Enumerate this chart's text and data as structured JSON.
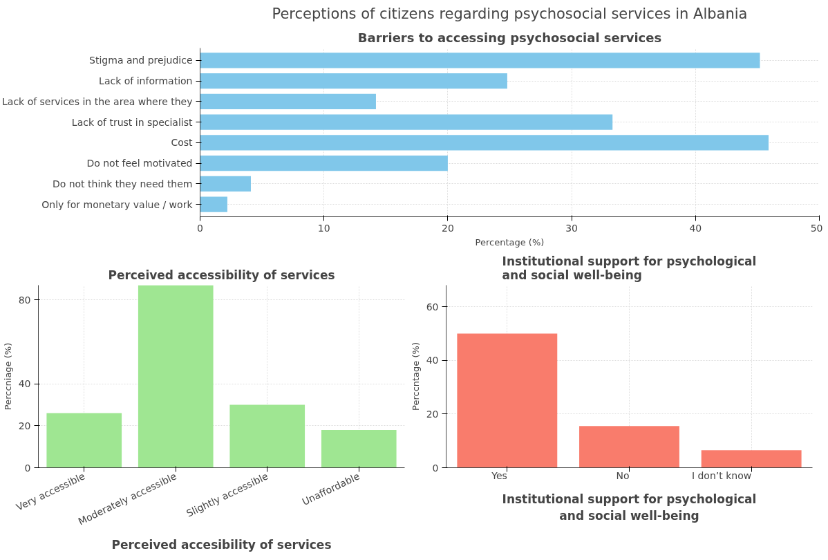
{
  "chart_data": [
    {
      "type": "bar",
      "title": "Perceptions of citizens regarding psychosocial services in Albania",
      "subtitle": "Barriers to accessing psychosocial services",
      "orientation": "horizontal",
      "xlabel": "Percentage (%)",
      "categories": [
        "Stigma and prejudice",
        "Lack of information",
        "Lack of services in the area where they",
        "Lack of trust in specialist",
        "Cost",
        "Do not feel motivated",
        "Do not think they need them",
        "Only for monetary value / work"
      ],
      "values": [
        45.2,
        24.8,
        14.2,
        33.3,
        45.9,
        20.0,
        4.1,
        2.2
      ],
      "color": "#80c7ea",
      "xlim": [
        0,
        50
      ],
      "xticks": [
        0,
        10,
        20,
        30,
        40,
        50
      ],
      "grid": true
    },
    {
      "type": "bar",
      "title": "Perceived accessibility of services",
      "xlabel": "Perceived accesibility of services",
      "ylabel": "Perccniage (%)",
      "categories": [
        "Very accessible",
        "Moderately accessible",
        "Slightly accessible",
        "Unaffordable"
      ],
      "values": [
        26,
        87,
        30,
        18
      ],
      "color": "#9fe692",
      "ylim": [
        0,
        87
      ],
      "yticks": [
        0,
        20,
        40,
        80
      ],
      "grid": true
    },
    {
      "type": "bar",
      "title": "Institutional support for psychological and social well-being",
      "xlabel": "Institutional support for psychological and social well-being",
      "ylabel": "Perccntage (%)",
      "categories": [
        "Yes",
        "No",
        "I don’t know"
      ],
      "values": [
        50,
        15.5,
        6.5
      ],
      "color": "#f97c6c",
      "ylim": [
        0,
        68
      ],
      "yticks": [
        0,
        20,
        40,
        60
      ],
      "grid": true
    }
  ]
}
